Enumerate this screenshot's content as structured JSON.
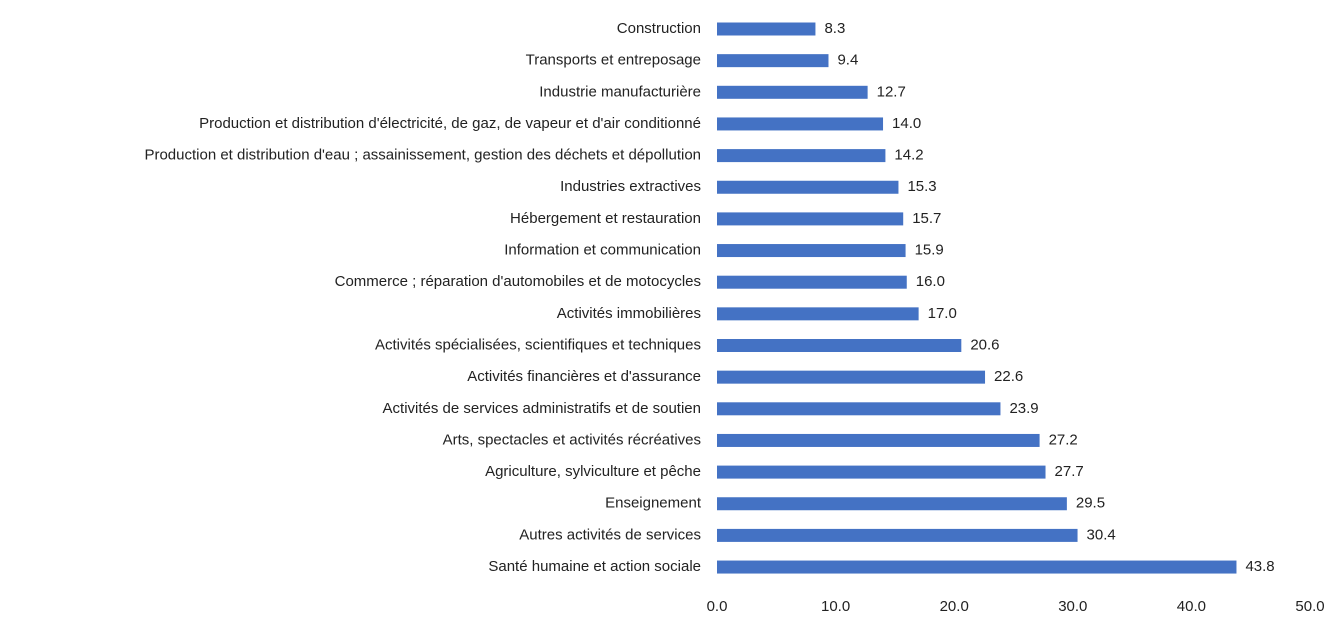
{
  "chart_data": {
    "type": "bar",
    "orientation": "horizontal",
    "categories": [
      "Construction",
      "Transports et entreposage",
      "Industrie manufacturière",
      "Production et distribution d'électricité, de gaz, de vapeur et d'air conditionné",
      "Production et distribution d'eau ; assainissement, gestion des déchets et dépollution",
      "Industries extractives",
      "Hébergement et restauration",
      "Information et communication",
      "Commerce ; réparation d'automobiles et de motocycles",
      "Activités immobilières",
      "Activités spécialisées, scientifiques et techniques",
      "Activités financières et d'assurance",
      "Activités de services administratifs et de soutien",
      "Arts, spectacles et activités récréatives",
      "Agriculture, sylviculture et pêche",
      "Enseignement",
      "Autres activités de services",
      "Santé humaine et action sociale"
    ],
    "values": [
      8.3,
      9.4,
      12.7,
      14.0,
      14.2,
      15.3,
      15.7,
      15.9,
      16.0,
      17.0,
      20.6,
      22.6,
      23.9,
      27.2,
      27.7,
      29.5,
      30.4,
      43.8
    ],
    "value_labels": [
      "8.3",
      "9.4",
      "12.7",
      "14.0",
      "14.2",
      "15.3",
      "15.7",
      "15.9",
      "16.0",
      "17.0",
      "20.6",
      "22.6",
      "23.9",
      "27.2",
      "27.7",
      "29.5",
      "30.4",
      "43.8"
    ],
    "color": "#4472c4",
    "xlim": [
      0,
      50
    ],
    "xticks": [
      {
        "value": 0,
        "label": "0.0"
      },
      {
        "value": 10,
        "label": "10.0"
      },
      {
        "value": 20,
        "label": "20.0"
      },
      {
        "value": 30,
        "label": "30.0"
      },
      {
        "value": 40,
        "label": "40.0"
      },
      {
        "value": 50,
        "label": "50.0"
      }
    ],
    "grid": false
  }
}
